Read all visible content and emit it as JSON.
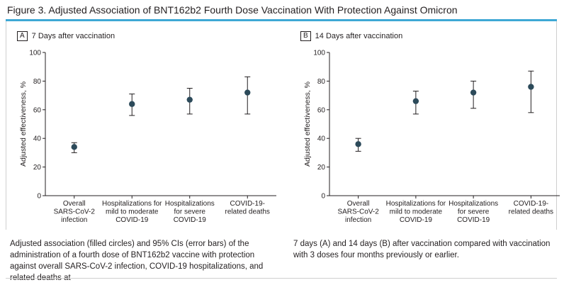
{
  "figure": {
    "title": "Figure 3. Adjusted Association of BNT162b2 Fourth Dose Vaccination With Protection Against Omicron",
    "accent_color": "#3ea8d5",
    "point_color": "#2c4a5a"
  },
  "caption": {
    "left": "Adjusted association (filled circles) and 95% CIs (error bars) of the administration of a fourth dose of BNT162b2 vaccine with protection against overall SARS-CoV-2 infection, COVID-19 hospitalizations, and related deaths at",
    "right": "7 days (A) and 14 days (B) after vaccination compared with vaccination with 3 doses four months previously or earlier."
  },
  "chart_data": [
    {
      "type": "scatter",
      "panel_letter": "A",
      "title": "7 Days after vaccination",
      "ylabel": "Adjusted effectiveness, %",
      "ylim": [
        0,
        100
      ],
      "yticks": [
        "0",
        "20",
        "40",
        "60",
        "80",
        "100"
      ],
      "categories": [
        [
          "Overall",
          "SARS-CoV-2",
          "infection"
        ],
        [
          "Hospitalizations for",
          "mild to moderate",
          "COVID-19"
        ],
        [
          "Hospitalizations",
          "for severe",
          "COVID-19"
        ],
        [
          "COVID-19-",
          "related deaths"
        ]
      ],
      "values": [
        34,
        64,
        67,
        72
      ],
      "ci_low": [
        30,
        56,
        57,
        57
      ],
      "ci_high": [
        37,
        71,
        75,
        83
      ]
    },
    {
      "type": "scatter",
      "panel_letter": "B",
      "title": "14 Days after vaccination",
      "ylabel": "Adjusted effectiveness, %",
      "ylim": [
        0,
        100
      ],
      "yticks": [
        "0",
        "20",
        "40",
        "60",
        "80",
        "100"
      ],
      "categories": [
        [
          "Overall",
          "SARS-CoV-2",
          "infection"
        ],
        [
          "Hospitalizations for",
          "mild to moderate",
          "COVID-19"
        ],
        [
          "Hospitalizations",
          "for severe",
          "COVID-19"
        ],
        [
          "COVID-19-",
          "related deaths"
        ]
      ],
      "values": [
        36,
        66,
        72,
        76
      ],
      "ci_low": [
        31,
        57,
        61,
        58
      ],
      "ci_high": [
        40,
        73,
        80,
        87
      ]
    }
  ]
}
